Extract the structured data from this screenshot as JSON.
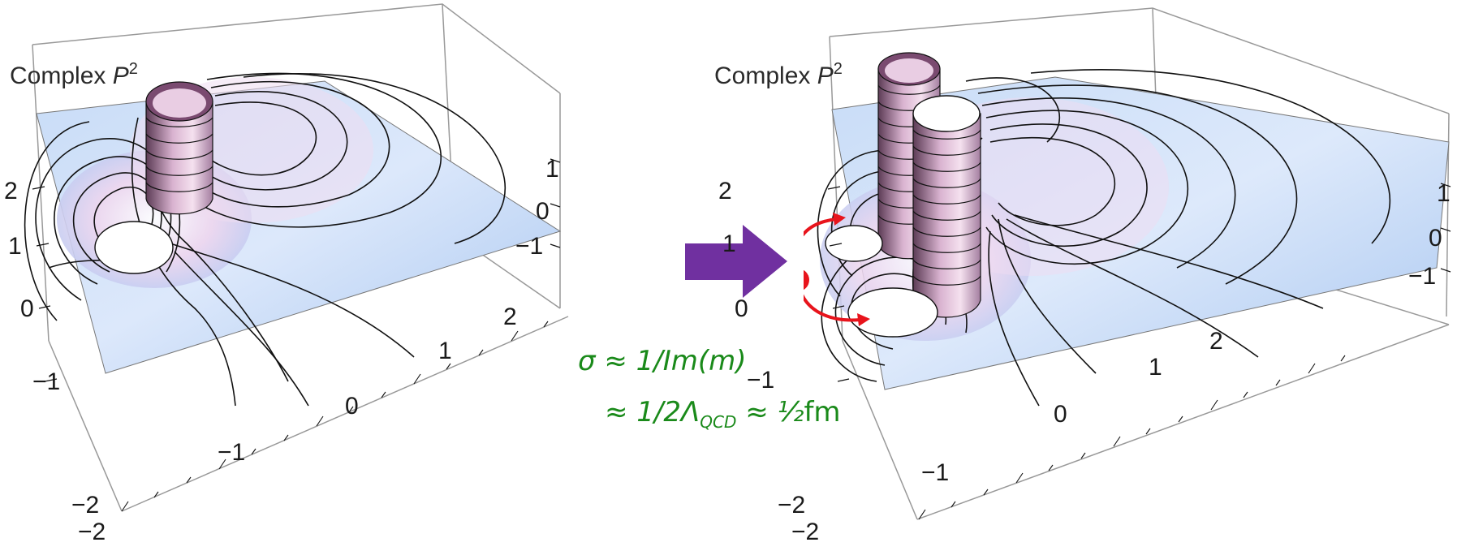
{
  "left_plot": {
    "label": "Complex",
    "label_var": "P",
    "label_exp": "2",
    "z_ticks": [
      "2",
      "1",
      "0",
      "−1"
    ],
    "x_ticks": [
      "−2",
      "−1",
      "0",
      "1",
      "2"
    ],
    "y_ticks": [
      "1",
      "0",
      "−1"
    ],
    "corner_tick": "−2"
  },
  "right_plot": {
    "label": "Complex",
    "label_var": "P",
    "label_exp": "2",
    "z_ticks": [
      "2",
      "1",
      "0",
      "−1"
    ],
    "x_ticks": [
      "−2",
      "−1",
      "0",
      "1",
      "2"
    ],
    "y_ticks": [
      "1",
      "0",
      "−1"
    ],
    "corner_tick": "−2"
  },
  "formula": {
    "line1": "σ ≈ 1/Im(m)",
    "line2_prefix": "≈ 1/2Λ",
    "line2_sub": "QCD",
    "line2_mid": " ≈ ½",
    "line2_unit": "fm"
  },
  "colors": {
    "arrow": "#7030a0",
    "formula": "#1a8a1a",
    "loop_path": "#e8141c",
    "surface": "#b9d3f5"
  }
}
